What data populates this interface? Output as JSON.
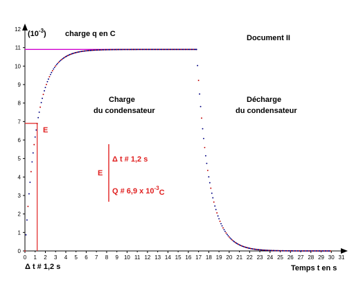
{
  "chart_data": {
    "type": "scatter",
    "y_unit_prefix": "(10",
    "y_unit_exp": "-3",
    "y_unit_suffix": ")",
    "ylabel": "charge q en C",
    "xlabel": "Temps t en s",
    "title": "Document II",
    "xlim": [
      0,
      31
    ],
    "ylim": [
      0,
      12
    ],
    "x_ticks": [
      0,
      2,
      4,
      6,
      8,
      10,
      12,
      14,
      16,
      18,
      20,
      22,
      24,
      26,
      28,
      30
    ],
    "x_tick_labels": [
      "0",
      "2",
      "4",
      "6",
      "8",
      "10",
      "12",
      "14",
      "16",
      "18",
      "20",
      "22",
      "24",
      "26",
      "28",
      "30"
    ],
    "x_tick_labels_odd": [
      "1",
      "3",
      "5",
      "7",
      "9",
      "11",
      "13",
      "15",
      "17",
      "19",
      "21",
      "23",
      "25",
      "27",
      "29",
      "31"
    ],
    "y_ticks": [
      0,
      1,
      2,
      3,
      4,
      5,
      6,
      7,
      8,
      9,
      10,
      11,
      12
    ],
    "y_tick_labels": [
      "0",
      "1",
      "2",
      "3",
      "4",
      "5",
      "6",
      "7",
      "8",
      "9",
      "10",
      "11",
      "12"
    ],
    "grid": false,
    "asymptote_value": 10.9,
    "E_level": 6.9,
    "tau": 1.2,
    "charge_end_time": 16.8,
    "series": [
      {
        "name": "charge",
        "model": "q = 10.9 (1 - exp(-t/1.2))",
        "t_start": 0,
        "t_end": 16.8,
        "color": "#000080"
      },
      {
        "name": "décharge",
        "model": "q = 10.9 exp(-(t-16.8)/1.2)",
        "t_start": 16.8,
        "t_end": 31,
        "color": "#000080"
      }
    ],
    "annotations": {
      "charge_1": "Charge",
      "charge_2": "du condensateur",
      "decharge_1": "Décharge",
      "decharge_2": "du condensateur",
      "E_top": "E",
      "E_side": "E",
      "dt_bracket": "Δ t # 1,2 s",
      "q_bracket_prefix": "Q  # 6,9 x 10",
      "q_bracket_exp": "-3",
      "q_bracket_unit": "C",
      "dt_bottom": "Δ t # 1,2 s"
    }
  },
  "colors": {
    "curve_dark": "#000080",
    "curve_red": "#c00000",
    "asymptote": "#d000d0",
    "annotation": "#e02020",
    "axis": "#000000"
  }
}
